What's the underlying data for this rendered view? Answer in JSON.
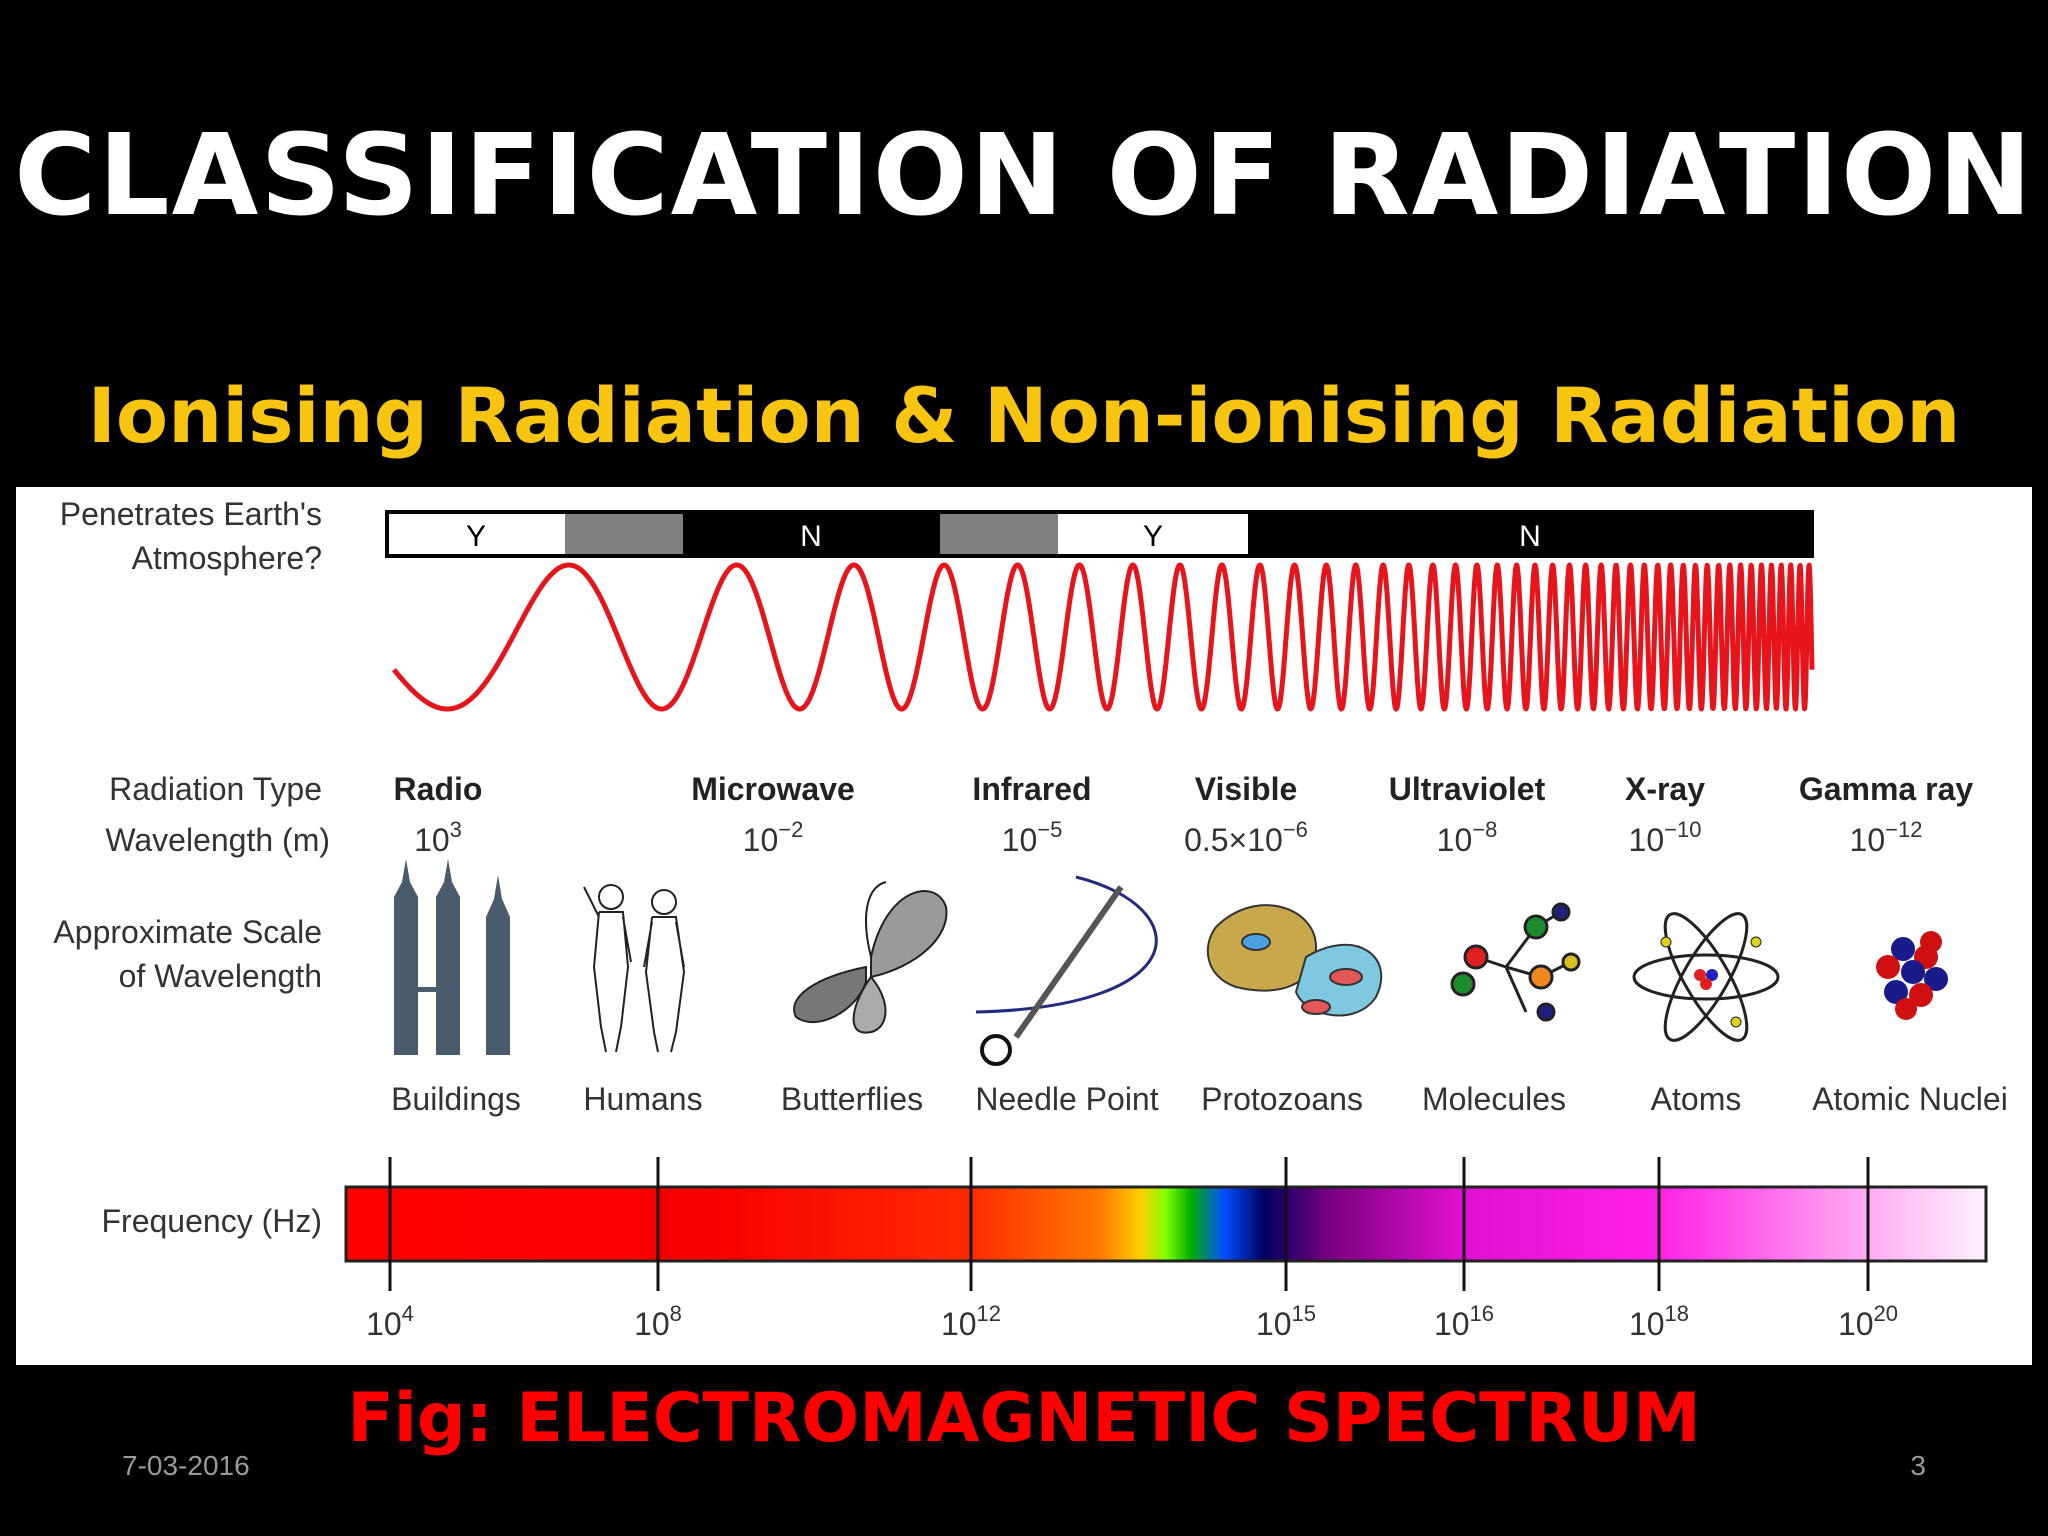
{
  "slide": {
    "title": "CLASSIFICATION OF RADIATION",
    "subtitle": "Ionising Radiation & Non-ionising Radiation",
    "caption": "Fig: ELECTROMAGNETIC SPECTRUM",
    "date": "7-03-2016",
    "page_number": "3"
  },
  "diagram": {
    "row_labels": {
      "penetrates_line1": "Penetrates Earth's",
      "penetrates_line2": "Atmosphere?",
      "radiation_type": "Radiation Type",
      "wavelength": "Wavelength (m)",
      "scale_line1": "Approximate Scale",
      "scale_line2": "of Wavelength",
      "frequency": "Frequency (Hz)"
    },
    "atmosphere_segments": [
      {
        "label": "Y",
        "color": "#ffffff"
      },
      {
        "label": "",
        "color": "#808080"
      },
      {
        "label": "N",
        "color": "#000000"
      },
      {
        "label": "",
        "color": "#808080"
      },
      {
        "label": "Y",
        "color": "#ffffff"
      },
      {
        "label": "N",
        "color": "#000000"
      }
    ],
    "radiation_types": [
      {
        "name": "Radio",
        "wl_base": "10",
        "wl_exp": "3"
      },
      {
        "name": "Microwave",
        "wl_base": "10",
        "wl_exp": "−2"
      },
      {
        "name": "Infrared",
        "wl_base": "10",
        "wl_exp": "−5"
      },
      {
        "name": "Visible",
        "wl_base": "0.5×10",
        "wl_exp": "−6"
      },
      {
        "name": "Ultraviolet",
        "wl_base": "10",
        "wl_exp": "−8"
      },
      {
        "name": "X-ray",
        "wl_base": "10",
        "wl_exp": "−10"
      },
      {
        "name": "Gamma ray",
        "wl_base": "10",
        "wl_exp": "−12"
      }
    ],
    "scale_objects": [
      {
        "label": "Buildings",
        "icon": "buildings-icon"
      },
      {
        "label": "Humans",
        "icon": "humans-icon"
      },
      {
        "label": "Butterflies",
        "icon": "butterfly-icon"
      },
      {
        "label": "Needle Point",
        "icon": "needle-icon"
      },
      {
        "label": "Protozoans",
        "icon": "protozoan-icon"
      },
      {
        "label": "Molecules",
        "icon": "molecule-icon"
      },
      {
        "label": "Atoms",
        "icon": "atom-icon"
      },
      {
        "label": "Atomic Nuclei",
        "icon": "nucleus-icon"
      }
    ],
    "frequency_ticks": [
      {
        "base": "10",
        "exp": "4"
      },
      {
        "base": "10",
        "exp": "8"
      },
      {
        "base": "10",
        "exp": "12"
      },
      {
        "base": "10",
        "exp": "15"
      },
      {
        "base": "10",
        "exp": "16"
      },
      {
        "base": "10",
        "exp": "18"
      },
      {
        "base": "10",
        "exp": "20"
      }
    ],
    "colors": {
      "wave": "#e8141b",
      "subtitle": "#f7c40f",
      "caption": "#ff0000"
    }
  }
}
